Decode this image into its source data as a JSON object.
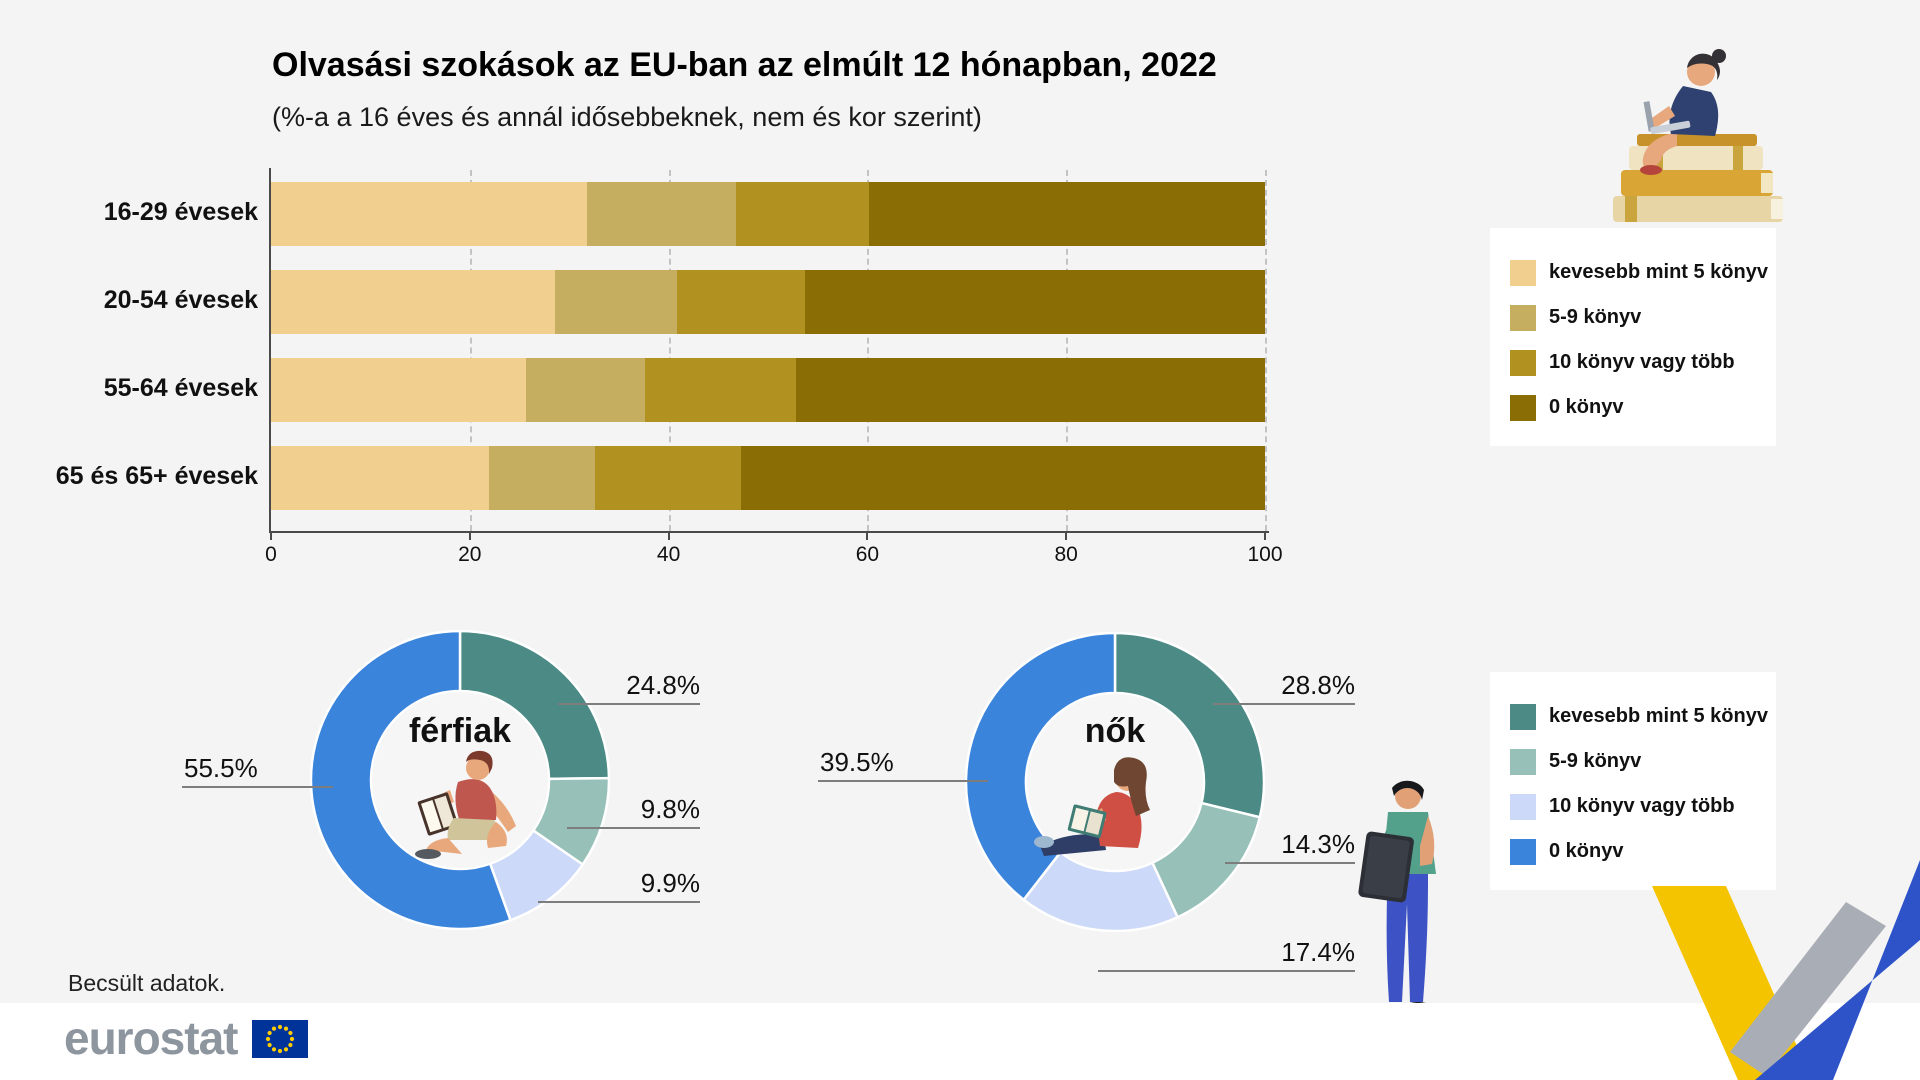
{
  "page": {
    "background_color": "#f4f4f4",
    "footnote": "Becsült adatok."
  },
  "header": {
    "title": "Olvasási szokások az EU-ban az elmúlt 12 hónapban, 2022",
    "subtitle": "(%-a a 16 éves és annál idősebbeknek, nem és kor szerint)"
  },
  "footer": {
    "logo_text": "eurostat"
  },
  "legends": {
    "ages": {
      "items": [
        {
          "label": "kevesebb mint 5 könyv",
          "color": "#f1d08f"
        },
        {
          "label": "5-9 könyv",
          "color": "#c6ae60"
        },
        {
          "label": "10 könyv vagy több",
          "color": "#b19221"
        },
        {
          "label": "0 könyv",
          "color": "#8a6d05"
        }
      ]
    },
    "gender": {
      "items": [
        {
          "label": "kevesebb mint 5 könyv",
          "color": "#4c8a86"
        },
        {
          "label": "5-9 könyv",
          "color": "#96c0b8"
        },
        {
          "label": "10 könyv vagy több",
          "color": "#ccd9f8"
        },
        {
          "label": "0 könyv",
          "color": "#3b84dc"
        }
      ]
    }
  },
  "chart_data": [
    {
      "type": "bar",
      "orientation": "horizontal_stacked",
      "title": "Olvasási szokások az EU-ban az elmúlt 12 hónapban, 2022",
      "subtitle": "(%-a a 16 éves és annál idősebbeknek, nem és kor szerint)",
      "categories": [
        "16-29 évesek",
        "20-54 évesek",
        "55-64 évesek",
        "65 és 65+ évesek"
      ],
      "series": [
        {
          "name": "kevesebb mint 5 könyv",
          "color": "#f1d08f",
          "values": [
            31.8,
            28.6,
            25.7,
            21.9
          ]
        },
        {
          "name": "5-9 könyv",
          "color": "#c6ae60",
          "values": [
            15.0,
            12.2,
            11.9,
            10.7
          ]
        },
        {
          "name": "10 könyv vagy több",
          "color": "#b19221",
          "values": [
            13.4,
            12.9,
            15.2,
            14.7
          ]
        },
        {
          "name": "0 könyv",
          "color": "#8a6d05",
          "values": [
            39.8,
            46.3,
            47.2,
            52.7
          ]
        }
      ],
      "xlim": [
        0,
        100
      ],
      "xticks": [
        0,
        20,
        40,
        60,
        80,
        100
      ],
      "grid": "vertical dashed",
      "legend_position": "right"
    },
    {
      "type": "pie",
      "subtype": "donut",
      "title": "férfiak",
      "labels": [
        "kevesebb mint 5 könyv",
        "5-9 könyv",
        "10 könyv vagy több",
        "0 könyv"
      ],
      "values": [
        24.8,
        9.8,
        9.9,
        55.5
      ],
      "colors": [
        "#4c8a86",
        "#96c0b8",
        "#ccd9f8",
        "#3b84dc"
      ]
    },
    {
      "type": "pie",
      "subtype": "donut",
      "title": "nők",
      "labels": [
        "kevesebb mint 5 könyv",
        "5-9 könyv",
        "10 könyv vagy több",
        "0 könyv"
      ],
      "values": [
        28.8,
        14.3,
        17.4,
        39.5
      ],
      "colors": [
        "#4c8a86",
        "#96c0b8",
        "#ccd9f8",
        "#3b84dc"
      ]
    }
  ],
  "illustrations": {
    "top_right": "woman-reading-on-stack-of-books-with-laptop",
    "donut_men_center": "man-sitting-reading-book",
    "donut_women_center": "woman-sitting-reading-book",
    "bottom_right": "man-standing-reading-tablet",
    "corner": "yellow-blue-ribbon-decoration",
    "flag": "eu-flag"
  }
}
